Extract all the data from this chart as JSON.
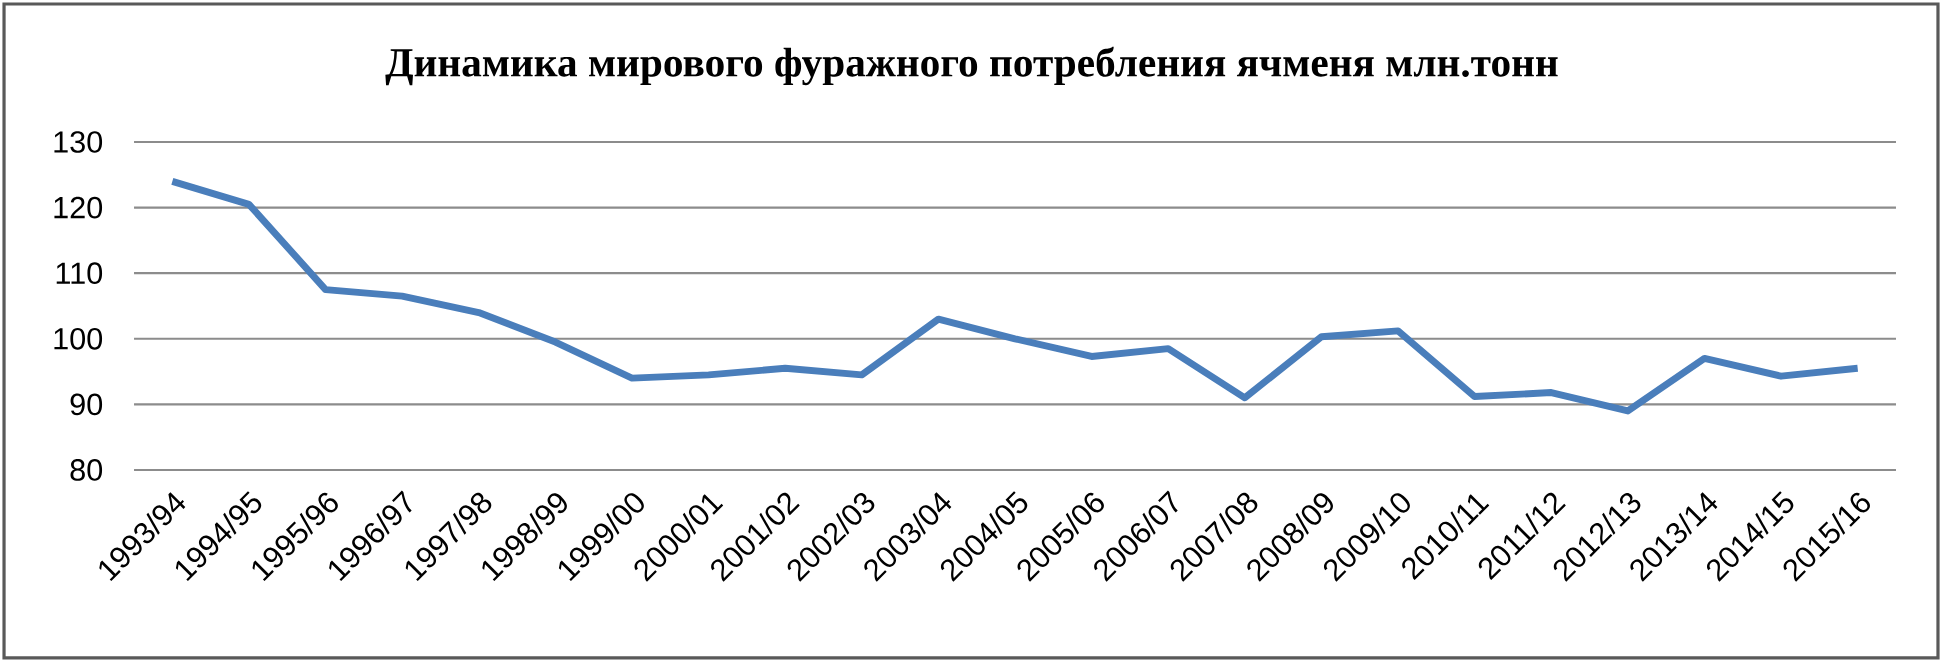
{
  "chart_data": {
    "type": "line",
    "title": "Динамика мирового фуражного потребления ячменя млн.тонн",
    "categories": [
      "1993/94",
      "1994/95",
      "1995/96",
      "1996/97",
      "1997/98",
      "1998/99",
      "1999/00",
      "2000/01",
      "2001/02",
      "2002/03",
      "2003/04",
      "2004/05",
      "2005/06",
      "2006/07",
      "2007/08",
      "2008/09",
      "2009/10",
      "2010/11",
      "2011/12",
      "2012/13",
      "2013/14",
      "2014/15",
      "2015/16"
    ],
    "series": [
      {
        "color": "#4a7ebb",
        "values": [
          124,
          120.5,
          107.5,
          106.5,
          104,
          99.5,
          94,
          94.5,
          95.5,
          94.5,
          103,
          100,
          97.3,
          98.5,
          91,
          100.3,
          101.2,
          91.2,
          91.8,
          89,
          97,
          94.3,
          95.5
        ]
      }
    ],
    "ylim": [
      80,
      130
    ],
    "yticks": [
      80,
      90,
      100,
      110,
      120,
      130
    ],
    "grid": "y",
    "legend": false,
    "marker": "none",
    "line_style": "solid"
  }
}
